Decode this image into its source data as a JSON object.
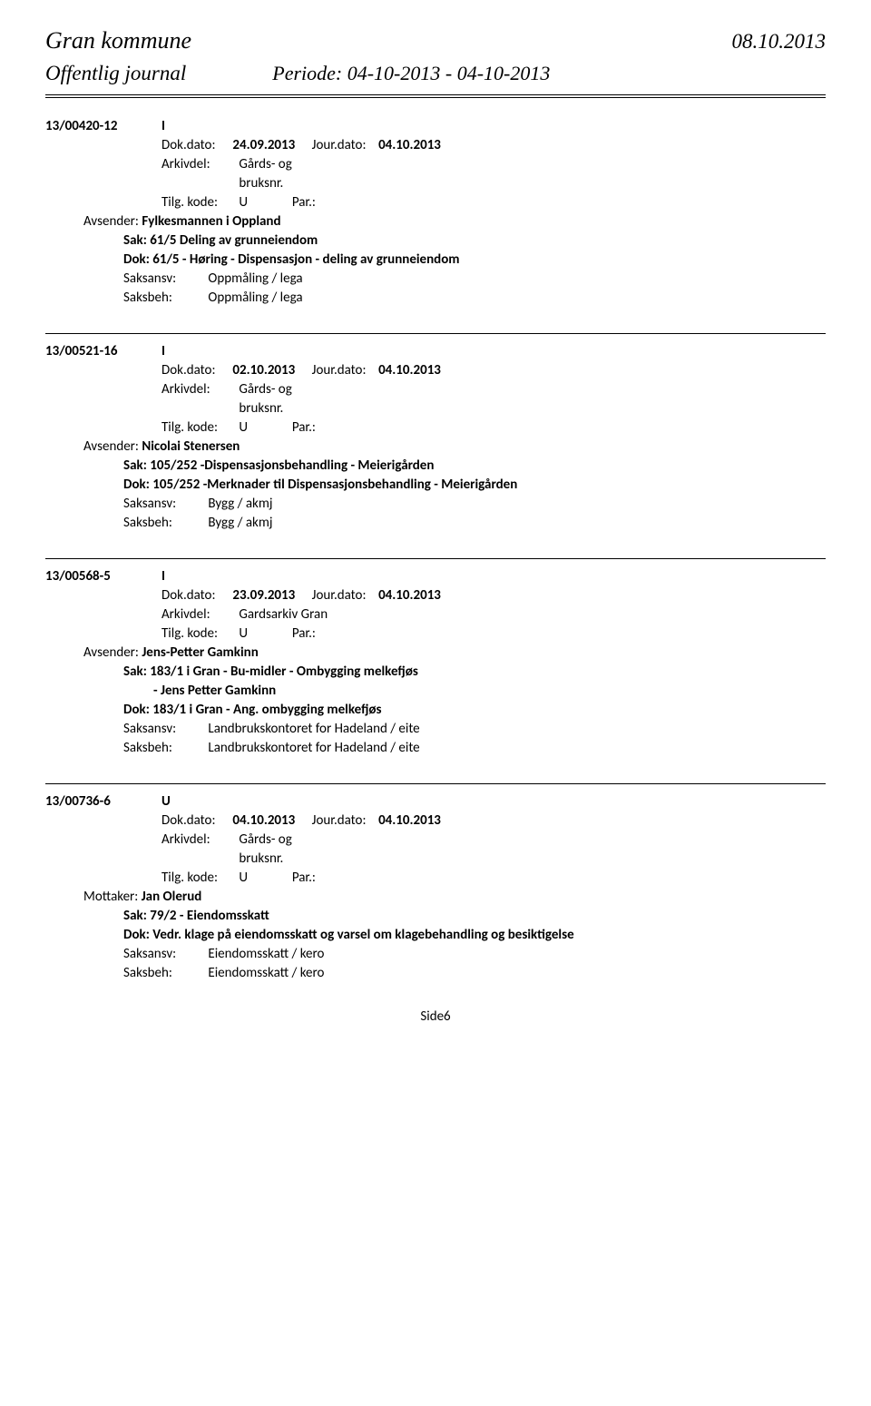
{
  "header": {
    "left": "Gran kommune",
    "right": "08.10.2013",
    "subLeft": "Offentlig journal",
    "subMiddle": "Periode: 04-10-2013 - 04-10-2013"
  },
  "labels": {
    "dokDato": "Dok.dato:",
    "jourDato": "Jour.dato:",
    "arkivdel": "Arkivdel:",
    "tilgKode": "Tilg. kode:",
    "par": "Par.:",
    "avsender": "Avsender:",
    "mottaker": "Mottaker:",
    "sak": "Sak:",
    "dok": "Dok:",
    "saksansv": "Saksansv:",
    "saksbeh": "Saksbeh:"
  },
  "entries": [
    {
      "caseId": "13/00420-12",
      "docType": "I",
      "dokDato": "24.09.2013",
      "jourDato": "04.10.2013",
      "arkivdel": "Gårds- og bruksnr.",
      "arkivdelMultiline": true,
      "tilgKode": "U",
      "par": "",
      "personLabel": "avsender",
      "person": "Fylkesmannen i Oppland",
      "sak": "61/5 Deling av grunneiendom",
      "sakLine2": "",
      "dok": "61/5 - Høring - Dispensasjon - deling av grunneiendom",
      "saksansv": "Oppmåling / lega",
      "saksbeh": "Oppmåling / lega"
    },
    {
      "caseId": "13/00521-16",
      "docType": "I",
      "dokDato": "02.10.2013",
      "jourDato": "04.10.2013",
      "arkivdel": "Gårds- og bruksnr.",
      "arkivdelMultiline": true,
      "tilgKode": "U",
      "par": "",
      "personLabel": "avsender",
      "person": "Nicolai Stenersen",
      "sak": "105/252 -Dispensasjonsbehandling - Meierigården",
      "sakLine2": "",
      "dok": "105/252 -Merknader til Dispensasjonsbehandling - Meierigården",
      "saksansv": "Bygg / akmj",
      "saksbeh": "Bygg / akmj"
    },
    {
      "caseId": "13/00568-5",
      "docType": "I",
      "dokDato": "23.09.2013",
      "jourDato": "04.10.2013",
      "arkivdel": "Gardsarkiv Gran",
      "arkivdelMultiline": false,
      "tilgKode": "U",
      "par": "",
      "personLabel": "avsender",
      "person": "Jens-Petter Gamkinn",
      "sak": "183/1 i Gran - Bu-midler - Ombygging melkefjøs",
      "sakLine2": "- Jens Petter Gamkinn",
      "dok": "183/1 i Gran - Ang. ombygging melkefjøs",
      "saksansv": "Landbrukskontoret for Hadeland / eite",
      "saksbeh": "Landbrukskontoret for Hadeland / eite"
    },
    {
      "caseId": "13/00736-6",
      "docType": "U",
      "dokDato": "04.10.2013",
      "jourDato": "04.10.2013",
      "arkivdel": "Gårds- og bruksnr.",
      "arkivdelMultiline": true,
      "tilgKode": "U",
      "par": "",
      "personLabel": "mottaker",
      "person": "Jan Olerud",
      "sak": "79/2 -   Eiendomsskatt",
      "sakLine2": "",
      "dok": "Vedr. klage på eiendomsskatt og varsel om klagebehandling og besiktigelse",
      "saksansv": "Eiendomsskatt / kero",
      "saksbeh": "Eiendomsskatt / kero"
    }
  ],
  "footer": "Side6"
}
